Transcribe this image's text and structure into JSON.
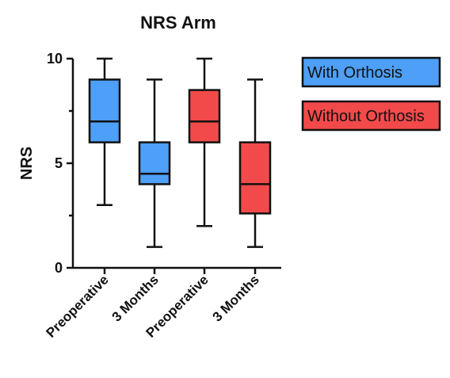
{
  "chart_data": {
    "type": "box",
    "title": "NRS Arm",
    "xlabel": "",
    "ylabel": "NRS",
    "ylim": [
      0,
      10
    ],
    "yticks": [
      0,
      5,
      10
    ],
    "grid": false,
    "legend_placement": "right",
    "categories": [
      "Preoperative",
      "3 Months",
      "Preoperative",
      "3 Months"
    ],
    "series": [
      {
        "name": "With Orthosis",
        "color": "#4d9ff7",
        "boxes": [
          {
            "category": "Preoperative",
            "min": 3,
            "q1": 6,
            "median": 7,
            "q3": 9,
            "max": 10
          },
          {
            "category": "3 Months",
            "min": 1,
            "q1": 4,
            "median": 4.5,
            "q3": 6,
            "max": 9
          }
        ]
      },
      {
        "name": "Without Orthosis",
        "color": "#f24a4a",
        "boxes": [
          {
            "category": "Preoperative",
            "min": 2,
            "q1": 6,
            "median": 7,
            "q3": 8.5,
            "max": 10
          },
          {
            "category": "3 Months",
            "min": 1,
            "q1": 2.6,
            "median": 4,
            "q3": 6,
            "max": 9
          }
        ]
      }
    ]
  }
}
